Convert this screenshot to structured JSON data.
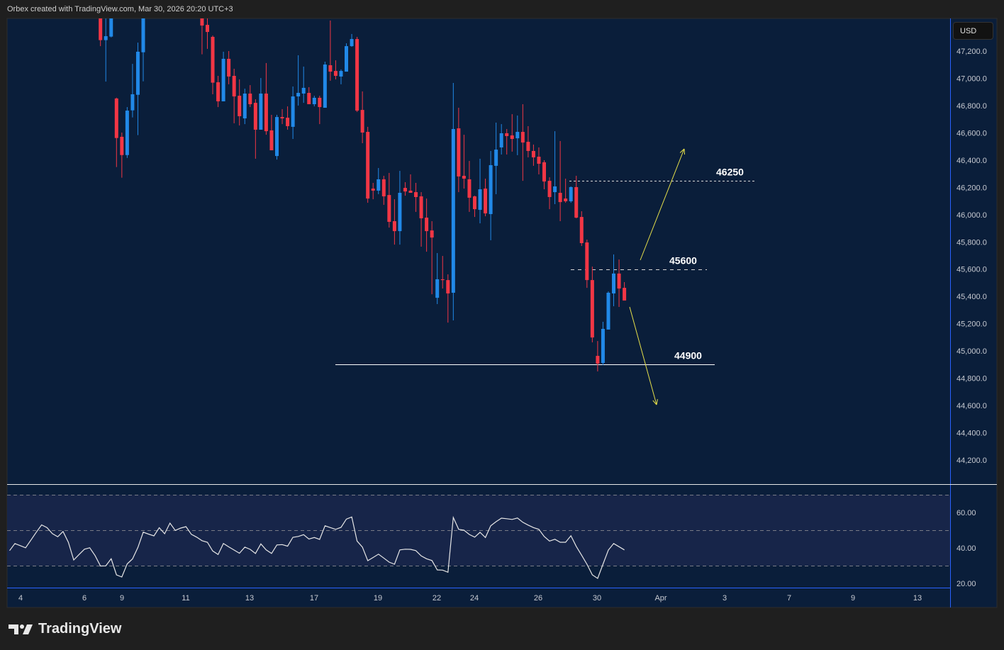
{
  "header": {
    "attribution": "Orbex created with TradingView.com, Mar 30, 2026 20:20 UTC+3"
  },
  "price_axis": {
    "currency": "USD",
    "ticks": [
      "47,200.0",
      "47,000.0",
      "46,800.0",
      "46,600.0",
      "46,400.0",
      "46,200.0",
      "46,000.0",
      "45,800.0",
      "45,600.0",
      "45,400.0",
      "45,200.0",
      "45,000.0",
      "44,800.0",
      "44,600.0",
      "44,400.0",
      "44,200.0"
    ]
  },
  "rsi_axis": {
    "ticks": [
      "60.00",
      "40.00",
      "20.00"
    ]
  },
  "time_axis": {
    "ticks": [
      "4",
      "6",
      "9",
      "11",
      "13",
      "17",
      "19",
      "22",
      "24",
      "26",
      "30",
      "Apr",
      "3",
      "7",
      "9",
      "13"
    ]
  },
  "logo": {
    "text": "TradingView"
  },
  "colors": {
    "up": "#2189e8",
    "down": "#f23645",
    "background": "#0a1e3a",
    "rsi_line": "#e6e6e6",
    "arrow": "#e6e04a"
  },
  "chart_data": {
    "type": "candlestick",
    "ylim": [
      44100,
      47450
    ],
    "price_ticks": [
      47200,
      47000,
      46800,
      46600,
      46400,
      46200,
      46000,
      45800,
      45600,
      45400,
      45200,
      45000,
      44800,
      44600,
      44400,
      44200
    ],
    "candles_ohlc": [
      null,
      null,
      null,
      null,
      null,
      null,
      null,
      null,
      null,
      null,
      null,
      null,
      null,
      null,
      null,
      null,
      null,
      [
        47500,
        47550,
        47236,
        47280
      ],
      [
        47280,
        47500,
        46976,
        47309
      ],
      [
        47306,
        47500,
        47300,
        47440
      ],
      [
        46852,
        46858,
        46349,
        46562
      ],
      [
        46571,
        46602,
        46271,
        46437
      ],
      [
        46437,
        46789,
        46416,
        46763
      ],
      [
        46765,
        47106,
        46713,
        46883
      ],
      [
        46879,
        47262,
        46583,
        47195
      ],
      [
        47191,
        47500,
        46978,
        47440
      ],
      null,
      null,
      null,
      null,
      null,
      null,
      null,
      null,
      null,
      null,
      [
        47500,
        47550,
        47176,
        47387
      ],
      [
        47392,
        47440,
        47216,
        47340
      ],
      [
        47304,
        47314,
        46883,
        46968
      ],
      [
        46971,
        47018,
        46789,
        46831
      ],
      [
        46831,
        47195,
        46831,
        47143
      ],
      [
        47143,
        47200,
        46956,
        47013
      ],
      [
        47018,
        47070,
        46670,
        46867
      ],
      [
        46872,
        46992,
        46654,
        46722
      ],
      [
        46706,
        46924,
        46664,
        46888
      ],
      [
        46888,
        46950,
        46789,
        46810
      ],
      [
        46820,
        46846,
        46410,
        46623
      ],
      [
        46623,
        47002,
        46623,
        46888
      ],
      [
        46888,
        47112,
        46586,
        46612
      ],
      [
        46618,
        46732,
        46472,
        46472
      ],
      [
        46430,
        46732,
        46404,
        46716
      ],
      [
        46716,
        46774,
        46664,
        46706
      ],
      [
        46711,
        46794,
        46623,
        46649
      ],
      [
        46644,
        46940,
        46555,
        46867
      ],
      [
        46867,
        47169,
        46800,
        46893
      ],
      [
        46888,
        47086,
        46820,
        46930
      ],
      [
        46893,
        46935,
        46810,
        46810
      ],
      [
        46810,
        46872,
        46794,
        46857
      ],
      [
        46857,
        46872,
        46664,
        46789
      ],
      [
        46784,
        47122,
        46784,
        47101
      ],
      [
        47096,
        47424,
        46982,
        47049
      ],
      [
        47054,
        47132,
        46992,
        47018
      ],
      [
        47013,
        47065,
        46956,
        47054
      ],
      [
        47049,
        47257,
        47049,
        47236
      ],
      [
        47236,
        47325,
        47231,
        47288
      ],
      [
        47288,
        47304,
        46753,
        46763
      ],
      [
        46768,
        46904,
        46524,
        46602
      ],
      [
        46607,
        46644,
        46087,
        46118
      ],
      [
        46191,
        46233,
        46113,
        46176
      ],
      [
        46176,
        46342,
        46150,
        46259
      ],
      [
        46259,
        46285,
        46072,
        46134
      ],
      [
        46144,
        46306,
        45905,
        45947
      ],
      [
        45952,
        46113,
        45780,
        45879
      ],
      [
        45879,
        46321,
        45780,
        46160
      ],
      [
        46196,
        46238,
        46139,
        46170
      ],
      [
        46176,
        46295,
        46160,
        46160
      ],
      [
        46165,
        46233,
        46020,
        46129
      ],
      [
        46134,
        46165,
        45765,
        45973
      ],
      [
        45978,
        46118,
        45728,
        45879
      ],
      [
        45884,
        45952,
        45416,
        45832
      ],
      [
        45390,
        45718,
        45344,
        45526
      ],
      [
        45526,
        45697,
        45458,
        45520
      ],
      [
        45520,
        45562,
        45208,
        45422
      ],
      [
        45427,
        46966,
        45224,
        46628
      ],
      [
        46633,
        46784,
        46165,
        46280
      ],
      [
        46285,
        46586,
        46191,
        46264
      ],
      [
        46259,
        46394,
        46020,
        46124
      ],
      [
        46134,
        46139,
        45983,
        46040
      ],
      [
        46035,
        46410,
        45936,
        46186
      ],
      [
        46191,
        46264,
        45988,
        46009
      ],
      [
        46004,
        46467,
        45812,
        46363
      ],
      [
        46358,
        46675,
        46150,
        46477
      ],
      [
        46493,
        46664,
        46441,
        46597
      ],
      [
        46597,
        46628,
        46441,
        46576
      ],
      [
        46581,
        46737,
        46462,
        46555
      ],
      [
        46560,
        46727,
        46436,
        46607
      ],
      [
        46607,
        46810,
        46248,
        46529
      ],
      [
        46534,
        46649,
        46420,
        46467
      ],
      [
        46467,
        46514,
        46358,
        46420
      ],
      [
        46425,
        46493,
        46295,
        46373
      ],
      [
        46384,
        46399,
        46186,
        46243
      ],
      [
        46248,
        46274,
        46040,
        46129
      ],
      [
        46165,
        46612,
        46077,
        46207
      ],
      [
        46160,
        46540,
        45952,
        46092
      ],
      [
        46118,
        46264,
        46087,
        46098
      ],
      [
        46098,
        46207,
        46087,
        46202
      ],
      [
        46202,
        46285,
        45973,
        45978
      ],
      [
        45983,
        46025,
        45770,
        45791
      ],
      [
        45796,
        45817,
        45463,
        45520
      ],
      [
        45520,
        45619,
        45063,
        45099
      ],
      [
        44964,
        45073,
        44850,
        44907
      ],
      [
        44912,
        45214,
        44896,
        45162
      ],
      [
        45157,
        45437,
        45157,
        45427
      ],
      [
        45422,
        45708,
        45328,
        45568
      ],
      [
        45568,
        45671,
        45323,
        45458
      ],
      [
        45463,
        45505,
        45370,
        45370
      ]
    ],
    "levels": [
      {
        "label": "46250",
        "price": 46250,
        "style": "dashed"
      },
      {
        "label": "45600",
        "price": 45600,
        "style": "dashed"
      },
      {
        "label": "44900",
        "price": 44900,
        "style": "solid"
      }
    ],
    "rsi": {
      "ylim": [
        15,
        75
      ],
      "bands": [
        70,
        50,
        30
      ],
      "values": [
        38.5,
        42.5,
        41.3,
        40.1,
        44.5,
        48.9,
        53,
        51.5,
        48.1,
        46.3,
        49.3,
        43.2,
        33.2,
        36.3,
        39.3,
        40.1,
        35.7,
        29.8,
        29.9,
        33.9,
        24.8,
        23.6,
        31,
        33.8,
        40.3,
        48.9,
        47.8,
        46.8,
        51.4,
        48,
        54,
        49.9,
        51.2,
        52,
        47.7,
        46.1,
        44.1,
        43.2,
        38.3,
        36.3,
        42.5,
        40.6,
        38.8,
        37,
        40.5,
        39.2,
        36.9,
        42.3,
        38.9,
        36.9,
        41.7,
        41.9,
        41,
        46,
        46.5,
        47.5,
        45,
        45.9,
        44.8,
        52.5,
        51.5,
        50.5,
        51.6,
        56.3,
        57.5,
        43.9,
        40.5,
        32.8,
        34.6,
        36.5,
        34.3,
        32,
        30.8,
        38.9,
        39.3,
        39.2,
        38.5,
        35.5,
        33.9,
        32.9,
        27.6,
        27.5,
        26.3,
        57.2,
        50.5,
        50,
        47.6,
        46.1,
        48.8,
        45.9,
        52.5,
        54.8,
        56.8,
        56.5,
        56.1,
        56.9,
        54.5,
        52.9,
        51.5,
        50.5,
        46.5,
        43.9,
        44.9,
        43.2,
        43.2,
        46.9,
        40.9,
        35.9,
        30.8,
        24.8,
        22.8,
        30.8,
        38.8,
        42.5,
        40.7,
        38.9
      ]
    }
  }
}
